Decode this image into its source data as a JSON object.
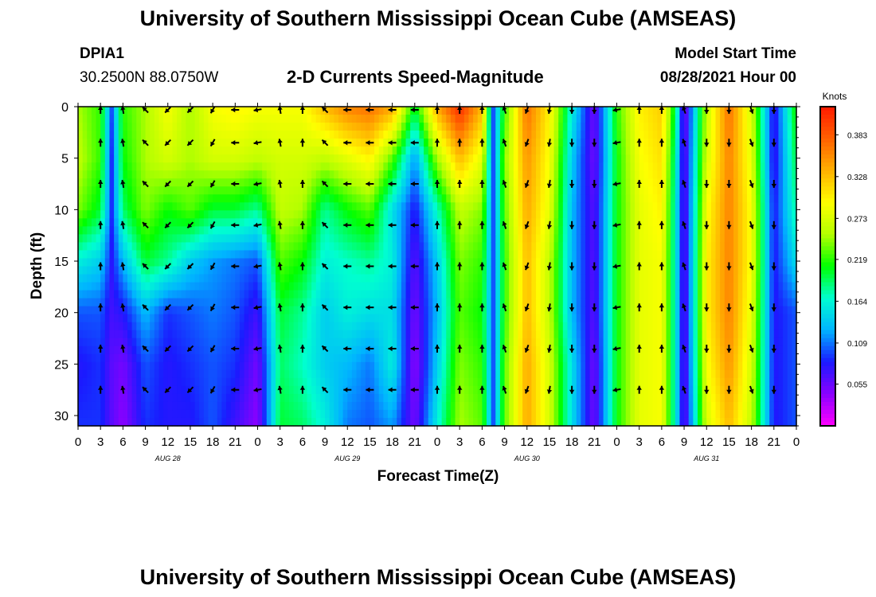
{
  "header": {
    "title_top": "University of Southern Mississippi Ocean Cube (AMSEAS)",
    "title_bottom": "University of Southern Mississippi Ocean Cube (AMSEAS)",
    "station_id": "DPIA1",
    "station_coords": "30.2500N  88.0750W",
    "chart_title": "2-D Currents Speed-Magnitude",
    "model_start_label": "Model Start Time",
    "model_start_value": "08/28/2021 Hour 00"
  },
  "colors": {
    "arrow": "#000000",
    "colormap": [
      "#ff00ff",
      "#8a00ff",
      "#1a1aff",
      "#00b4ff",
      "#00ffd0",
      "#00ff00",
      "#b4ff00",
      "#ffff00",
      "#ffb000",
      "#ff6000",
      "#ff1a00"
    ]
  },
  "chart_data": {
    "type": "heatmap",
    "title": "2-D Currents Speed-Magnitude",
    "xlabel": "Forecast Time(Z)",
    "ylabel": "Depth (ft)",
    "colorbar_label": "Knots",
    "colorbar_ticks": [
      "0.383",
      "0.328",
      "0.273",
      "0.219",
      "0.164",
      "0.109",
      "0.055"
    ],
    "colorbar_tick_values": [
      0.383,
      0.328,
      0.273,
      0.219,
      0.164,
      0.109,
      0.055
    ],
    "color_range": [
      0.0,
      0.42
    ],
    "x_hours_range": [
      0,
      96
    ],
    "ylim": [
      0,
      31
    ],
    "y_ticks": [
      "0",
      "5",
      "10",
      "15",
      "20",
      "25",
      "30"
    ],
    "y_tick_values": [
      0,
      5,
      10,
      15,
      20,
      25,
      30
    ],
    "x_tick_labels": [
      "0",
      "3",
      "6",
      "9",
      "12",
      "15",
      "18",
      "21",
      "0",
      "3",
      "6",
      "9",
      "12",
      "15",
      "18",
      "21",
      "0",
      "3",
      "6",
      "9",
      "12",
      "15",
      "18",
      "21",
      "0",
      "3",
      "6",
      "9",
      "12",
      "15",
      "18",
      "21",
      "0"
    ],
    "date_labels": [
      "AUG 28",
      "AUG 29",
      "AUG 30",
      "AUG 31"
    ],
    "date_label_hours": [
      12,
      36,
      60,
      84
    ],
    "arrow_hours": [
      3,
      6,
      9,
      12,
      15,
      18,
      21,
      24,
      27,
      30,
      33,
      36,
      39,
      42,
      45,
      48,
      51,
      54,
      57,
      60,
      63,
      66,
      69,
      72,
      75,
      78,
      81,
      84,
      87,
      90,
      93
    ],
    "arrow_depths": [
      0,
      3.5,
      7.5,
      11.5,
      15.5,
      19.5,
      23.5,
      27.5
    ],
    "arrow_directions_deg": [
      0,
      350,
      315,
      225,
      225,
      210,
      270,
      260,
      350,
      0,
      315,
      270,
      270,
      270,
      270,
      0,
      0,
      0,
      340,
      200,
      190,
      180,
      180,
      260,
      0,
      0,
      340,
      180,
      180,
      160,
      180
    ],
    "speed_profile": [
      {
        "hour": 0,
        "values": [
          0.25,
          0.26,
          0.24,
          0.16,
          0.1,
          0.08,
          0.09
        ]
      },
      {
        "hour": 3,
        "values": [
          0.22,
          0.22,
          0.2,
          0.14,
          0.1,
          0.09,
          0.09
        ]
      },
      {
        "hour": 4.5,
        "values": [
          0.1,
          0.09,
          0.09,
          0.08,
          0.07,
          0.06,
          0.06
        ]
      },
      {
        "hour": 6,
        "values": [
          0.22,
          0.21,
          0.19,
          0.13,
          0.08,
          0.05,
          0.04
        ]
      },
      {
        "hour": 9,
        "values": [
          0.25,
          0.25,
          0.24,
          0.2,
          0.13,
          0.1,
          0.09
        ]
      },
      {
        "hour": 12,
        "values": [
          0.29,
          0.27,
          0.21,
          0.18,
          0.09,
          0.08,
          0.08
        ]
      },
      {
        "hour": 15,
        "values": [
          0.25,
          0.25,
          0.23,
          0.14,
          0.1,
          0.09,
          0.08
        ]
      },
      {
        "hour": 18,
        "values": [
          0.29,
          0.27,
          0.2,
          0.12,
          0.11,
          0.1,
          0.1
        ]
      },
      {
        "hour": 21,
        "values": [
          0.3,
          0.27,
          0.2,
          0.11,
          0.1,
          0.09,
          0.07
        ]
      },
      {
        "hour": 24,
        "values": [
          0.29,
          0.26,
          0.18,
          0.1,
          0.07,
          0.05,
          0.04
        ]
      },
      {
        "hour": 27,
        "values": [
          0.29,
          0.27,
          0.26,
          0.23,
          0.2,
          0.19,
          0.2
        ]
      },
      {
        "hour": 30,
        "values": [
          0.29,
          0.27,
          0.25,
          0.21,
          0.18,
          0.17,
          0.19
        ]
      },
      {
        "hour": 33,
        "values": [
          0.33,
          0.26,
          0.18,
          0.16,
          0.14,
          0.14,
          0.16
        ]
      },
      {
        "hour": 36,
        "values": [
          0.36,
          0.28,
          0.21,
          0.17,
          0.16,
          0.13,
          0.11
        ]
      },
      {
        "hour": 39,
        "values": [
          0.37,
          0.3,
          0.23,
          0.18,
          0.15,
          0.11,
          0.1
        ]
      },
      {
        "hour": 42,
        "values": [
          0.34,
          0.23,
          0.15,
          0.16,
          0.15,
          0.16,
          0.12
        ]
      },
      {
        "hour": 45,
        "values": [
          0.2,
          0.12,
          0.08,
          0.06,
          0.05,
          0.04,
          0.05
        ]
      },
      {
        "hour": 48,
        "values": [
          0.34,
          0.25,
          0.17,
          0.14,
          0.13,
          0.14,
          0.16
        ]
      },
      {
        "hour": 51,
        "values": [
          0.41,
          0.33,
          0.26,
          0.24,
          0.23,
          0.24,
          0.25
        ]
      },
      {
        "hour": 54,
        "values": [
          0.33,
          0.28,
          0.24,
          0.22,
          0.21,
          0.22,
          0.23
        ]
      },
      {
        "hour": 55.5,
        "values": [
          0.1,
          0.1,
          0.1,
          0.1,
          0.1,
          0.1,
          0.1
        ]
      },
      {
        "hour": 57,
        "values": [
          0.22,
          0.24,
          0.23,
          0.22,
          0.22,
          0.23,
          0.23
        ]
      },
      {
        "hour": 60,
        "values": [
          0.37,
          0.35,
          0.34,
          0.33,
          0.33,
          0.34,
          0.34
        ]
      },
      {
        "hour": 63,
        "values": [
          0.3,
          0.29,
          0.28,
          0.26,
          0.26,
          0.27,
          0.27
        ]
      },
      {
        "hour": 66,
        "values": [
          0.16,
          0.14,
          0.13,
          0.13,
          0.13,
          0.15,
          0.15
        ]
      },
      {
        "hour": 69,
        "values": [
          0.05,
          0.05,
          0.06,
          0.06,
          0.06,
          0.05,
          0.05
        ]
      },
      {
        "hour": 72,
        "values": [
          0.22,
          0.21,
          0.21,
          0.21,
          0.21,
          0.21,
          0.21
        ]
      },
      {
        "hour": 75,
        "values": [
          0.3,
          0.29,
          0.28,
          0.28,
          0.28,
          0.28,
          0.28
        ]
      },
      {
        "hour": 78,
        "values": [
          0.32,
          0.31,
          0.3,
          0.29,
          0.29,
          0.29,
          0.29
        ]
      },
      {
        "hour": 80,
        "values": [
          0.18,
          0.16,
          0.15,
          0.15,
          0.15,
          0.15,
          0.15
        ]
      },
      {
        "hour": 81,
        "values": [
          0.04,
          0.05,
          0.05,
          0.05,
          0.05,
          0.05,
          0.05
        ]
      },
      {
        "hour": 84,
        "values": [
          0.26,
          0.27,
          0.29,
          0.3,
          0.3,
          0.29,
          0.27
        ]
      },
      {
        "hour": 87,
        "values": [
          0.37,
          0.36,
          0.36,
          0.36,
          0.36,
          0.35,
          0.33
        ]
      },
      {
        "hour": 90,
        "values": [
          0.27,
          0.28,
          0.29,
          0.29,
          0.28,
          0.27,
          0.26
        ]
      },
      {
        "hour": 93,
        "values": [
          0.07,
          0.07,
          0.08,
          0.08,
          0.08,
          0.08,
          0.08
        ]
      },
      {
        "hour": 96,
        "values": [
          0.22,
          0.2,
          0.18,
          0.15,
          0.1,
          0.1,
          0.1
        ]
      }
    ],
    "speed_profile_depths": [
      0,
      5,
      10,
      15,
      20,
      25,
      31
    ]
  }
}
